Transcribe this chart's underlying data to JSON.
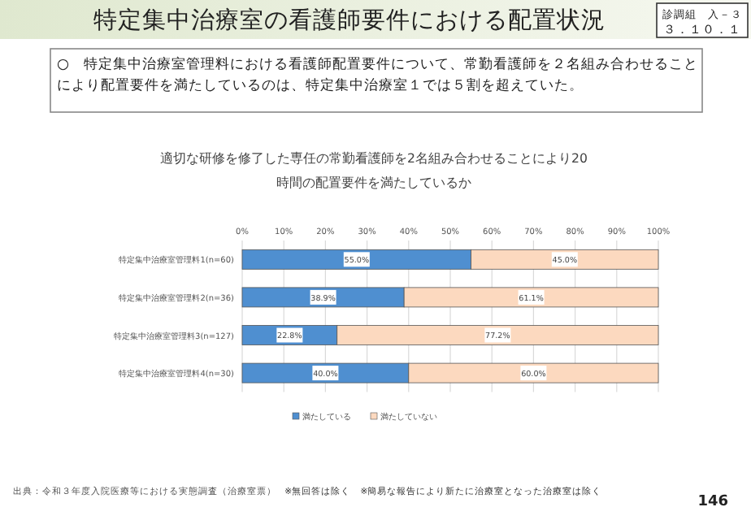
{
  "chart_data": {
    "type": "bar",
    "orientation": "horizontal",
    "stacked": true,
    "title": "適切な研修を修了した専任の常勤看護師を2名組み合わせることにより20時間の配置要件を満たしているか",
    "annotations": [
      "特定集中治療室の看護師要件における配置状況",
      "診調組　入－３",
      "３．１０．１",
      "○　特定集中治療室管理料における看護師配置要件について、常勤看護師を２名組み合わせることにより配置要件を満たしているのは、特定集中治療室１では５割を超えていた。",
      "出典：令和３年度入院医療等における実態調査（治療室票）",
      "※無回答は除く　※簡易な報告により新たに治療室となった治療室は除く",
      "146"
    ],
    "categories": [
      "特定集中治療室管理料1(n=60)",
      "特定集中治療室管理料2(n=36)",
      "特定集中治療室管理料3(n=127)",
      "特定集中治療室管理料4(n=30)"
    ],
    "series": [
      {
        "name": "満たしている",
        "color": "#4f8fd0",
        "values": [
          55.0,
          38.9,
          22.8,
          40.0
        ],
        "value_labels": [
          "55.0%",
          "38.9%",
          "22.8%",
          "40.0%"
        ]
      },
      {
        "name": "満たしていない",
        "color": "#fcd9bf",
        "values": [
          45.0,
          61.1,
          77.2,
          60.0
        ],
        "value_labels": [
          "45.0%",
          "61.1%",
          "77.2%",
          "60.0%"
        ]
      }
    ],
    "xlim": [
      0,
      100
    ],
    "xticks": [
      {
        "value": 0,
        "label": "0%"
      },
      {
        "value": 10,
        "label": "10%"
      },
      {
        "value": 20,
        "label": "20%"
      },
      {
        "value": 30,
        "label": "30%"
      },
      {
        "value": 40,
        "label": "40%"
      },
      {
        "value": 50,
        "label": "50%"
      },
      {
        "value": 60,
        "label": "60%"
      },
      {
        "value": 70,
        "label": "70%"
      },
      {
        "value": 80,
        "label": "80%"
      },
      {
        "value": 90,
        "label": "90%"
      },
      {
        "value": 100,
        "label": "100%"
      }
    ],
    "grid": "x",
    "legend": "bottom"
  }
}
